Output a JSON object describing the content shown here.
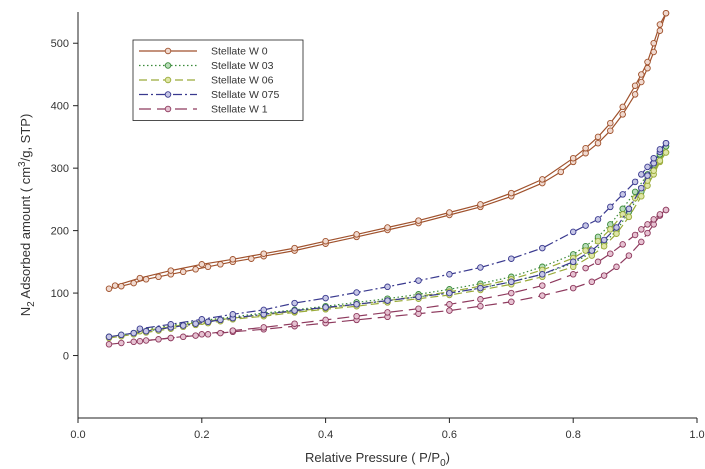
{
  "chart_data": {
    "type": "line",
    "title": "",
    "xlabel": {
      "main": "Relative Pressure  ( P/P",
      "sub": "0",
      "tail": ")"
    },
    "ylabel": {
      "pre": "N",
      "sub": "2",
      "mid": " Adsorbed amount ( cm",
      "sup": "3",
      "post": "/g, STP)"
    },
    "xlim": [
      0.0,
      1.0
    ],
    "ylim": [
      -100,
      550
    ],
    "xticks": [
      0.0,
      0.2,
      0.4,
      0.6,
      0.8,
      1.0
    ],
    "xtick_labels": [
      "0.0",
      "0.2",
      "0.4",
      "0.6",
      "0.8",
      "1.0"
    ],
    "yticks": [
      0,
      100,
      200,
      300,
      400,
      500
    ],
    "ytick_labels": [
      "0",
      "100",
      "200",
      "300",
      "400",
      "500"
    ],
    "grid": false,
    "legend_position": "top-left",
    "series": [
      {
        "name": "Stellate W 0",
        "color": "#a0522d",
        "dash": "",
        "marker_fill": "#f0d9cf",
        "adsorption": [
          [
            0.05,
            107
          ],
          [
            0.07,
            111
          ],
          [
            0.09,
            116
          ],
          [
            0.11,
            122
          ],
          [
            0.13,
            126
          ],
          [
            0.15,
            130
          ],
          [
            0.17,
            134
          ],
          [
            0.19,
            138
          ],
          [
            0.21,
            142
          ],
          [
            0.23,
            146
          ],
          [
            0.25,
            150
          ],
          [
            0.28,
            155
          ],
          [
            0.3,
            159
          ],
          [
            0.35,
            168
          ],
          [
            0.4,
            179
          ],
          [
            0.45,
            190
          ],
          [
            0.5,
            201
          ],
          [
            0.55,
            212
          ],
          [
            0.6,
            225
          ],
          [
            0.65,
            238
          ],
          [
            0.7,
            255
          ],
          [
            0.75,
            276
          ],
          [
            0.78,
            294
          ],
          [
            0.8,
            310
          ],
          [
            0.82,
            324
          ],
          [
            0.84,
            340
          ],
          [
            0.86,
            360
          ],
          [
            0.88,
            386
          ],
          [
            0.9,
            418
          ],
          [
            0.91,
            438
          ],
          [
            0.92,
            460
          ],
          [
            0.93,
            486
          ],
          [
            0.94,
            520
          ],
          [
            0.95,
            548
          ]
        ],
        "desorption": [
          [
            0.95,
            548
          ],
          [
            0.94,
            530
          ],
          [
            0.93,
            500
          ],
          [
            0.92,
            470
          ],
          [
            0.91,
            450
          ],
          [
            0.9,
            432
          ],
          [
            0.88,
            398
          ],
          [
            0.86,
            372
          ],
          [
            0.84,
            350
          ],
          [
            0.82,
            332
          ],
          [
            0.8,
            316
          ],
          [
            0.75,
            282
          ],
          [
            0.7,
            260
          ],
          [
            0.65,
            242
          ],
          [
            0.6,
            229
          ],
          [
            0.55,
            216
          ],
          [
            0.5,
            205
          ],
          [
            0.45,
            194
          ],
          [
            0.4,
            183
          ],
          [
            0.35,
            172
          ],
          [
            0.3,
            163
          ],
          [
            0.25,
            154
          ],
          [
            0.2,
            146
          ],
          [
            0.15,
            136
          ],
          [
            0.1,
            124
          ],
          [
            0.06,
            112
          ]
        ]
      },
      {
        "name": "Stellate W 03",
        "color": "#3a8a3a",
        "dash": "1.5,2.5",
        "marker_fill": "#b9dcb9",
        "adsorption": [
          [
            0.05,
            30
          ],
          [
            0.07,
            33
          ],
          [
            0.09,
            36
          ],
          [
            0.11,
            39
          ],
          [
            0.13,
            42
          ],
          [
            0.15,
            45
          ],
          [
            0.17,
            48
          ],
          [
            0.19,
            51
          ],
          [
            0.21,
            54
          ],
          [
            0.23,
            57
          ],
          [
            0.25,
            60
          ],
          [
            0.3,
            66
          ],
          [
            0.35,
            72
          ],
          [
            0.4,
            77
          ],
          [
            0.45,
            82
          ],
          [
            0.5,
            88
          ],
          [
            0.55,
            94
          ],
          [
            0.6,
            100
          ],
          [
            0.65,
            108
          ],
          [
            0.7,
            118
          ],
          [
            0.75,
            130
          ],
          [
            0.8,
            148
          ],
          [
            0.83,
            165
          ],
          [
            0.85,
            180
          ],
          [
            0.87,
            200
          ],
          [
            0.89,
            230
          ],
          [
            0.91,
            262
          ],
          [
            0.92,
            282
          ],
          [
            0.93,
            300
          ],
          [
            0.94,
            320
          ],
          [
            0.95,
            335
          ]
        ],
        "desorption": [
          [
            0.95,
            335
          ],
          [
            0.94,
            322
          ],
          [
            0.93,
            305
          ],
          [
            0.92,
            290
          ],
          [
            0.9,
            262
          ],
          [
            0.88,
            235
          ],
          [
            0.86,
            210
          ],
          [
            0.84,
            190
          ],
          [
            0.82,
            175
          ],
          [
            0.8,
            162
          ],
          [
            0.75,
            142
          ],
          [
            0.7,
            126
          ],
          [
            0.65,
            115
          ],
          [
            0.6,
            106
          ],
          [
            0.55,
            98
          ],
          [
            0.5,
            91
          ],
          [
            0.45,
            85
          ],
          [
            0.4,
            79
          ],
          [
            0.35,
            73
          ],
          [
            0.3,
            68
          ],
          [
            0.25,
            62
          ],
          [
            0.2,
            56
          ],
          [
            0.15,
            48
          ],
          [
            0.1,
            41
          ]
        ]
      },
      {
        "name": "Stellate W 06",
        "color": "#9aab3a",
        "dash": "8,4",
        "marker_fill": "#dfe6a6",
        "adsorption": [
          [
            0.05,
            28
          ],
          [
            0.07,
            31
          ],
          [
            0.09,
            34
          ],
          [
            0.11,
            37
          ],
          [
            0.13,
            40
          ],
          [
            0.15,
            43
          ],
          [
            0.17,
            46
          ],
          [
            0.19,
            49
          ],
          [
            0.21,
            52
          ],
          [
            0.23,
            55
          ],
          [
            0.25,
            58
          ],
          [
            0.3,
            63
          ],
          [
            0.35,
            69
          ],
          [
            0.4,
            74
          ],
          [
            0.45,
            79
          ],
          [
            0.5,
            85
          ],
          [
            0.55,
            91
          ],
          [
            0.6,
            97
          ],
          [
            0.65,
            105
          ],
          [
            0.7,
            114
          ],
          [
            0.75,
            126
          ],
          [
            0.8,
            142
          ],
          [
            0.83,
            160
          ],
          [
            0.85,
            175
          ],
          [
            0.87,
            195
          ],
          [
            0.89,
            222
          ],
          [
            0.91,
            255
          ],
          [
            0.92,
            272
          ],
          [
            0.93,
            290
          ],
          [
            0.94,
            310
          ],
          [
            0.95,
            325
          ]
        ],
        "desorption": [
          [
            0.95,
            325
          ],
          [
            0.94,
            312
          ],
          [
            0.93,
            296
          ],
          [
            0.92,
            280
          ],
          [
            0.9,
            252
          ],
          [
            0.88,
            226
          ],
          [
            0.86,
            202
          ],
          [
            0.84,
            183
          ],
          [
            0.82,
            168
          ],
          [
            0.8,
            156
          ],
          [
            0.75,
            137
          ],
          [
            0.7,
            122
          ],
          [
            0.65,
            111
          ],
          [
            0.6,
            102
          ],
          [
            0.55,
            95
          ],
          [
            0.5,
            88
          ],
          [
            0.45,
            82
          ],
          [
            0.4,
            76
          ],
          [
            0.35,
            71
          ],
          [
            0.3,
            65
          ],
          [
            0.25,
            60
          ],
          [
            0.2,
            54
          ],
          [
            0.15,
            46
          ],
          [
            0.1,
            39
          ]
        ]
      },
      {
        "name": "Stellate W 075",
        "color": "#3a3a8f",
        "dash": "9,3,2,3",
        "marker_fill": "#c7c7e6",
        "adsorption": [
          [
            0.05,
            30
          ],
          [
            0.07,
            33
          ],
          [
            0.09,
            36
          ],
          [
            0.11,
            39
          ],
          [
            0.13,
            42
          ],
          [
            0.15,
            45
          ],
          [
            0.17,
            48
          ],
          [
            0.19,
            51
          ],
          [
            0.21,
            54
          ],
          [
            0.23,
            57
          ],
          [
            0.25,
            60
          ],
          [
            0.3,
            66
          ],
          [
            0.35,
            72
          ],
          [
            0.4,
            77
          ],
          [
            0.45,
            82
          ],
          [
            0.5,
            88
          ],
          [
            0.55,
            94
          ],
          [
            0.6,
            100
          ],
          [
            0.65,
            108
          ],
          [
            0.7,
            118
          ],
          [
            0.75,
            130
          ],
          [
            0.8,
            150
          ],
          [
            0.83,
            168
          ],
          [
            0.85,
            185
          ],
          [
            0.87,
            205
          ],
          [
            0.89,
            235
          ],
          [
            0.91,
            268
          ],
          [
            0.92,
            288
          ],
          [
            0.93,
            308
          ],
          [
            0.94,
            326
          ],
          [
            0.95,
            340
          ]
        ],
        "desorption": [
          [
            0.95,
            340
          ],
          [
            0.94,
            330
          ],
          [
            0.93,
            316
          ],
          [
            0.92,
            302
          ],
          [
            0.91,
            290
          ],
          [
            0.9,
            278
          ],
          [
            0.88,
            258
          ],
          [
            0.86,
            238
          ],
          [
            0.84,
            218
          ],
          [
            0.82,
            208
          ],
          [
            0.8,
            198
          ],
          [
            0.75,
            172
          ],
          [
            0.7,
            155
          ],
          [
            0.65,
            141
          ],
          [
            0.6,
            130
          ],
          [
            0.55,
            120
          ],
          [
            0.5,
            110
          ],
          [
            0.45,
            101
          ],
          [
            0.4,
            92
          ],
          [
            0.35,
            84
          ],
          [
            0.3,
            73
          ],
          [
            0.25,
            66
          ],
          [
            0.2,
            58
          ],
          [
            0.15,
            50
          ],
          [
            0.1,
            43
          ]
        ]
      },
      {
        "name": "Stellate W 1",
        "color": "#8e3a5e",
        "dash": "12,6",
        "marker_fill": "#e6c2d2",
        "adsorption": [
          [
            0.05,
            18
          ],
          [
            0.07,
            20
          ],
          [
            0.09,
            22
          ],
          [
            0.11,
            24
          ],
          [
            0.13,
            26
          ],
          [
            0.15,
            28
          ],
          [
            0.17,
            30
          ],
          [
            0.19,
            32
          ],
          [
            0.21,
            34
          ],
          [
            0.23,
            36
          ],
          [
            0.25,
            38
          ],
          [
            0.3,
            42
          ],
          [
            0.35,
            47
          ],
          [
            0.4,
            52
          ],
          [
            0.45,
            57
          ],
          [
            0.5,
            62
          ],
          [
            0.55,
            67
          ],
          [
            0.6,
            72
          ],
          [
            0.65,
            79
          ],
          [
            0.7,
            86
          ],
          [
            0.75,
            96
          ],
          [
            0.8,
            108
          ],
          [
            0.83,
            118
          ],
          [
            0.85,
            128
          ],
          [
            0.87,
            142
          ],
          [
            0.89,
            160
          ],
          [
            0.91,
            182
          ],
          [
            0.92,
            196
          ],
          [
            0.93,
            210
          ],
          [
            0.94,
            224
          ],
          [
            0.95,
            233
          ]
        ],
        "desorption": [
          [
            0.95,
            233
          ],
          [
            0.94,
            226
          ],
          [
            0.93,
            218
          ],
          [
            0.92,
            210
          ],
          [
            0.91,
            202
          ],
          [
            0.9,
            193
          ],
          [
            0.88,
            178
          ],
          [
            0.86,
            163
          ],
          [
            0.84,
            150
          ],
          [
            0.82,
            140
          ],
          [
            0.8,
            130
          ],
          [
            0.75,
            112
          ],
          [
            0.7,
            100
          ],
          [
            0.65,
            90
          ],
          [
            0.6,
            82
          ],
          [
            0.55,
            75
          ],
          [
            0.5,
            69
          ],
          [
            0.45,
            63
          ],
          [
            0.4,
            57
          ],
          [
            0.35,
            51
          ],
          [
            0.3,
            45
          ],
          [
            0.25,
            40
          ],
          [
            0.2,
            34
          ],
          [
            0.15,
            28
          ],
          [
            0.1,
            23
          ]
        ]
      }
    ]
  }
}
